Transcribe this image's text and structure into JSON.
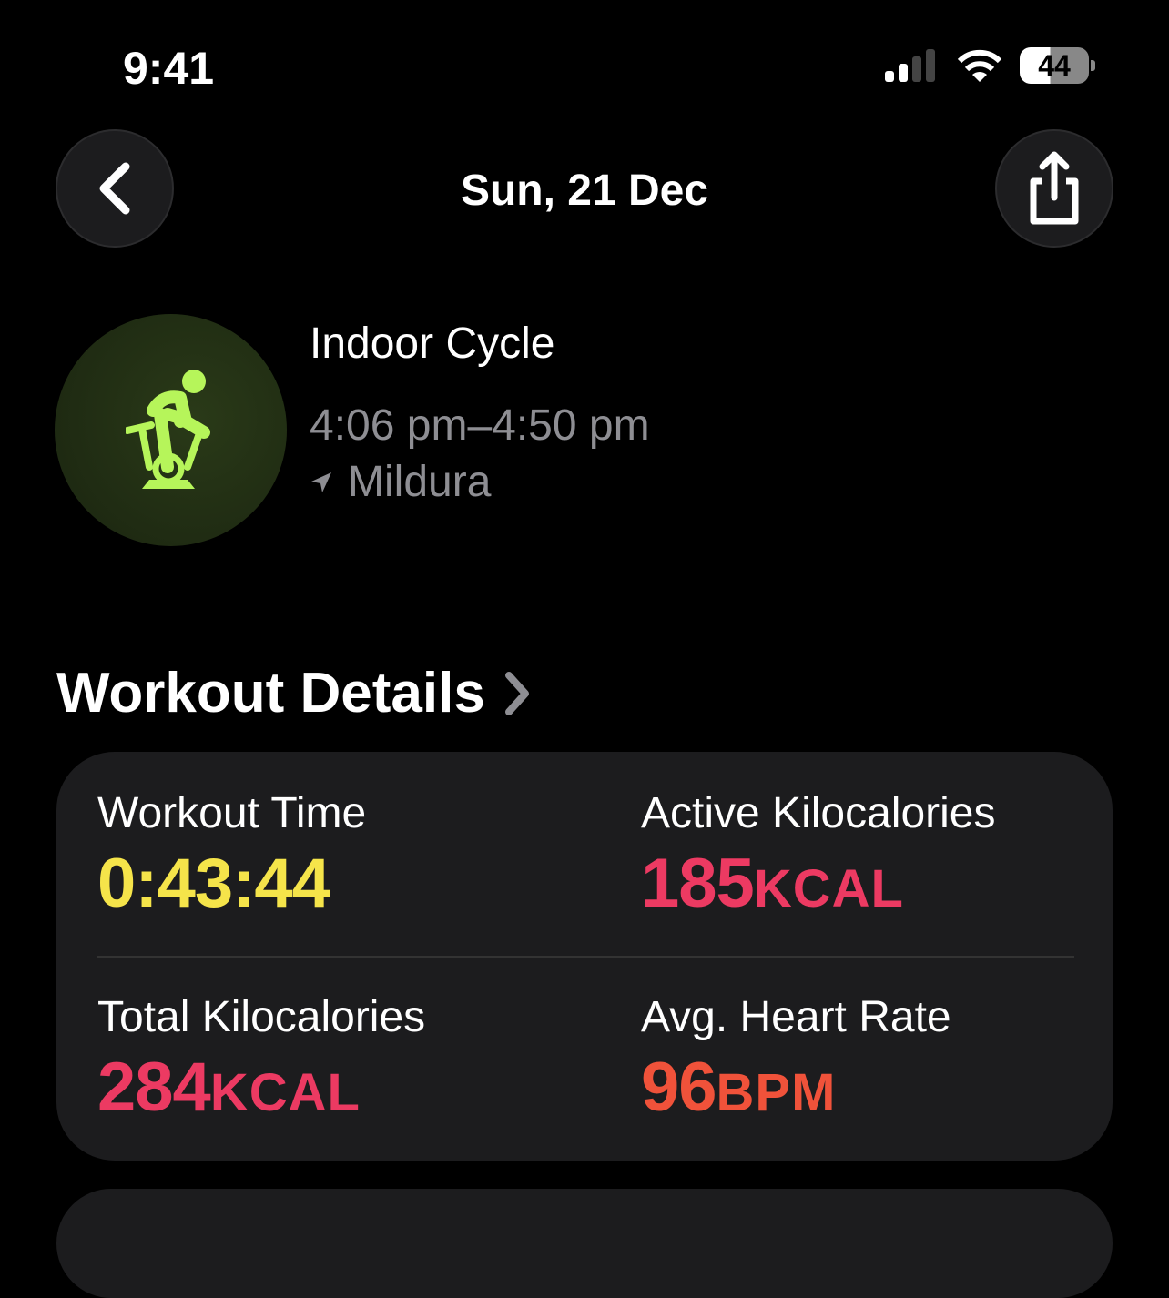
{
  "status_bar": {
    "time": "9:41",
    "battery": "44",
    "battery_level": 44
  },
  "nav": {
    "title": "Sun, 21 Dec",
    "back_icon": "chevron-left-icon",
    "share_icon": "share-icon"
  },
  "workout": {
    "name": "Indoor Cycle",
    "time_range": "4:06 pm–4:50 pm",
    "location": "Mildura",
    "icon": "indoor-cycle-icon",
    "accent": "#b6f55a"
  },
  "details": {
    "title": "Workout Details",
    "metrics": [
      {
        "label": "Workout Time",
        "value": "0:43:44",
        "unit": "",
        "color": "#f5e44a"
      },
      {
        "label": "Active Kilocalories",
        "value": "185",
        "unit": "KCAL",
        "color": "#ec3a62"
      },
      {
        "label": "Total Kilocalories",
        "value": "284",
        "unit": "KCAL",
        "color": "#ec3a62"
      },
      {
        "label": "Avg. Heart Rate",
        "value": "96",
        "unit": "BPM",
        "color": "#f0523a"
      }
    ]
  }
}
